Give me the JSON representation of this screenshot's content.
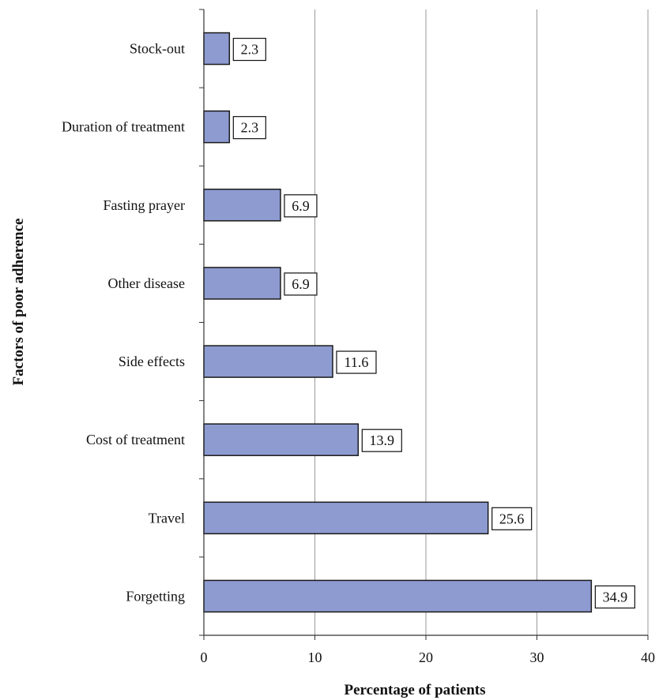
{
  "chart_data": {
    "type": "bar",
    "orientation": "horizontal",
    "categories": [
      "Forgetting",
      "Travel",
      "Cost of treatment",
      "Side effects",
      "Other disease",
      "Fasting prayer",
      "Duration of  treatment",
      "Stock-out"
    ],
    "values": [
      34.9,
      25.6,
      13.9,
      11.6,
      6.9,
      6.9,
      2.3,
      2.3
    ],
    "data_labels": [
      "34.9",
      "25.6",
      "13.9",
      "11.6",
      "6.9",
      "6.9",
      "2.3",
      "2.3"
    ],
    "title": "",
    "xlabel": "Percentage of patients",
    "ylabel": "Factors of poor adherence",
    "xlim": [
      0,
      40
    ],
    "xticks": [
      0,
      10,
      20,
      30,
      40
    ],
    "xtick_labels": [
      "0",
      "10",
      "20",
      "30",
      "40"
    ],
    "grid": "vertical",
    "legend": "none",
    "colors": {
      "bar_fill": "#8e9bd1",
      "bar_stroke": "#1a1a1a",
      "grid": "#9a9a9a",
      "axis": "#333333",
      "label_box": "#ffffff"
    }
  }
}
